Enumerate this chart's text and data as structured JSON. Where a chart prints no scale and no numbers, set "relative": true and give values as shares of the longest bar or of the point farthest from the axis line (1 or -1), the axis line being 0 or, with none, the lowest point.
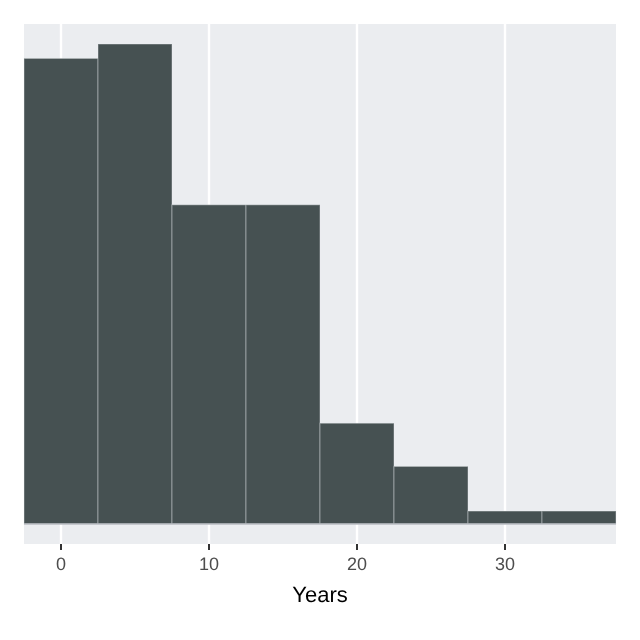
{
  "chart_data": {
    "type": "bar",
    "xlabel": "Years",
    "relative": true,
    "x": [
      0,
      5,
      10,
      15,
      20,
      25,
      30,
      35
    ],
    "values": [
      0.97,
      1,
      0.665,
      0.665,
      0.21,
      0.12,
      0.027,
      0.027
    ],
    "color": "#465152",
    "xlim": [
      -2.5,
      37.5
    ],
    "xticks": [
      0,
      10,
      20,
      30
    ],
    "grid": "x",
    "tick_labels": "x"
  }
}
